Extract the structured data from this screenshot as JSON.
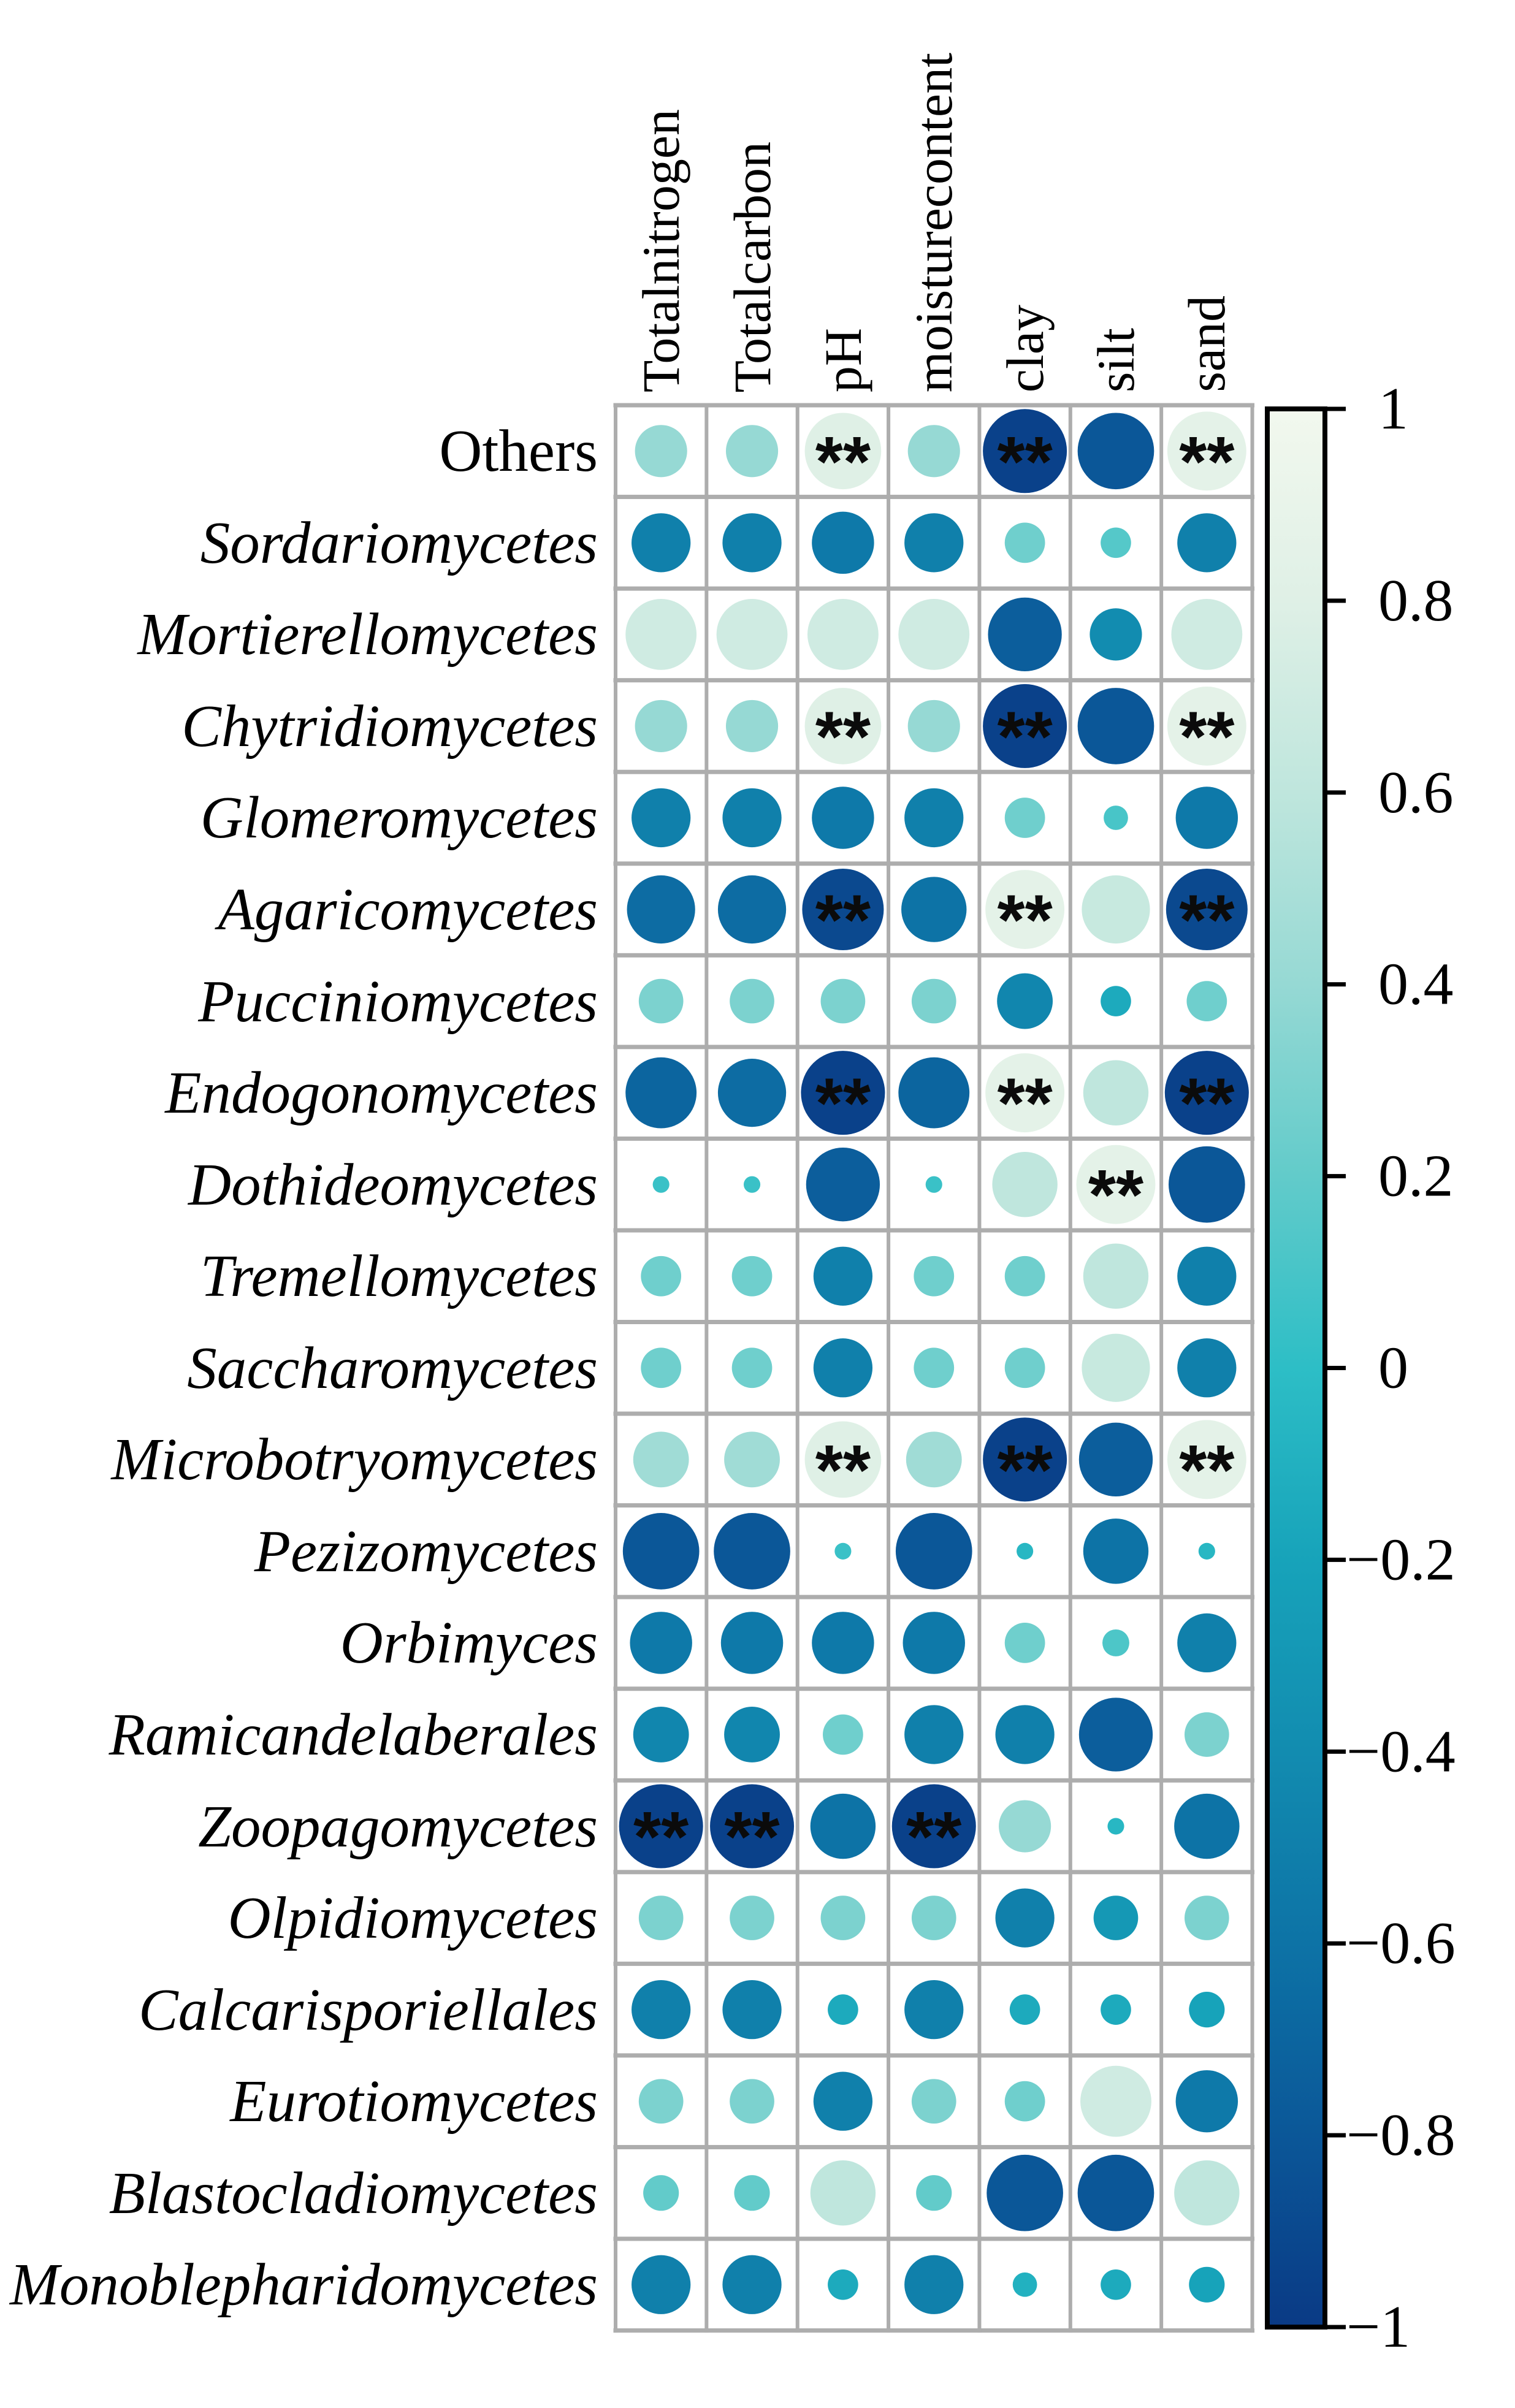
{
  "chart_data": {
    "type": "heatmap",
    "subtype": "correlation-bubble-matrix",
    "title": "",
    "xlabel": "",
    "ylabel": "",
    "legend_position": "right",
    "value_range": [
      -1,
      1
    ],
    "significance_marker": "**",
    "encoding": {
      "circle_size": "abs(correlation)",
      "circle_color": "correlation value mapped on colorbar"
    },
    "columns": [
      "Totalnitrogen",
      "Totalcarbon",
      "pH",
      "moisturecontent",
      "clay",
      "silt",
      "sand"
    ],
    "rows": [
      {
        "label": "Others",
        "italic": false,
        "values": [
          0.4,
          0.4,
          0.8,
          0.4,
          -0.95,
          -0.8,
          0.85
        ],
        "sig": [
          "",
          "",
          "**",
          "",
          "**",
          "",
          "**"
        ]
      },
      {
        "label": "Sordariomycetes",
        "italic": true,
        "values": [
          -0.5,
          -0.5,
          -0.55,
          -0.5,
          0.25,
          0.15,
          -0.5
        ],
        "sig": [
          "",
          "",
          "",
          "",
          "",
          "",
          ""
        ]
      },
      {
        "label": "Mortierellomycetes",
        "italic": true,
        "values": [
          0.7,
          0.7,
          0.7,
          0.7,
          -0.75,
          -0.4,
          0.7
        ],
        "sig": [
          "",
          "",
          "",
          "",
          "",
          "",
          ""
        ]
      },
      {
        "label": "Chytridiomycetes",
        "italic": true,
        "values": [
          0.4,
          0.4,
          0.8,
          0.4,
          -0.95,
          -0.8,
          0.85
        ],
        "sig": [
          "",
          "",
          "**",
          "",
          "**",
          "",
          "**"
        ]
      },
      {
        "label": "Glomeromycetes",
        "italic": true,
        "values": [
          -0.5,
          -0.5,
          -0.55,
          -0.5,
          0.25,
          0.1,
          -0.55
        ],
        "sig": [
          "",
          "",
          "",
          "",
          "",
          "",
          ""
        ]
      },
      {
        "label": "Agaricomycetes",
        "italic": true,
        "values": [
          -0.65,
          -0.65,
          -0.9,
          -0.6,
          0.85,
          0.65,
          -0.9
        ],
        "sig": [
          "",
          "",
          "**",
          "",
          "**",
          "",
          "**"
        ]
      },
      {
        "label": "Pucciniomycetes",
        "italic": true,
        "values": [
          0.3,
          0.3,
          0.3,
          0.3,
          -0.45,
          -0.15,
          0.25
        ],
        "sig": [
          "",
          "",
          "",
          "",
          "",
          "",
          ""
        ]
      },
      {
        "label": "Endogonomycetes",
        "italic": true,
        "values": [
          -0.7,
          -0.65,
          -0.95,
          -0.7,
          0.85,
          0.6,
          -0.95
        ],
        "sig": [
          "",
          "",
          "**",
          "",
          "**",
          "",
          "**"
        ]
      },
      {
        "label": "Dothideomycetes",
        "italic": true,
        "values": [
          0.05,
          0.05,
          -0.75,
          0.05,
          0.6,
          0.85,
          -0.8
        ],
        "sig": [
          "",
          "",
          "",
          "",
          "",
          "**",
          ""
        ]
      },
      {
        "label": "Tremellomycetes",
        "italic": true,
        "values": [
          0.25,
          0.25,
          -0.5,
          0.25,
          0.25,
          0.6,
          -0.5
        ],
        "sig": [
          "",
          "",
          "",
          "",
          "",
          "",
          ""
        ]
      },
      {
        "label": "Saccharomycetes",
        "italic": true,
        "values": [
          0.25,
          0.25,
          -0.5,
          0.25,
          0.25,
          0.65,
          -0.5
        ],
        "sig": [
          "",
          "",
          "",
          "",
          "",
          "",
          ""
        ]
      },
      {
        "label": "Microbotryomycetes",
        "italic": true,
        "values": [
          0.45,
          0.45,
          0.8,
          0.45,
          -0.95,
          -0.75,
          0.85
        ],
        "sig": [
          "",
          "",
          "**",
          "",
          "**",
          "",
          "**"
        ]
      },
      {
        "label": "Pezizomycetes",
        "italic": true,
        "values": [
          -0.8,
          -0.8,
          0.05,
          -0.8,
          -0.05,
          -0.6,
          -0.05
        ],
        "sig": [
          "",
          "",
          "",
          "",
          "",
          "",
          ""
        ]
      },
      {
        "label": "Orbimyces",
        "italic": true,
        "values": [
          -0.55,
          -0.55,
          -0.55,
          -0.55,
          0.25,
          0.12,
          -0.5
        ],
        "sig": [
          "",
          "",
          "",
          "",
          "",
          "",
          ""
        ]
      },
      {
        "label": "Ramicandelaberales",
        "italic": true,
        "values": [
          -0.45,
          -0.45,
          0.25,
          -0.5,
          -0.5,
          -0.75,
          0.3
        ],
        "sig": [
          "",
          "",
          "",
          "",
          "",
          "",
          ""
        ]
      },
      {
        "label": "Zoopagomycetes",
        "italic": true,
        "values": [
          -0.95,
          -0.95,
          -0.6,
          -0.95,
          0.4,
          -0.05,
          -0.6
        ],
        "sig": [
          "**",
          "**",
          "",
          "**",
          "",
          "",
          ""
        ]
      },
      {
        "label": "Olpidiomycetes",
        "italic": true,
        "values": [
          0.3,
          0.3,
          0.3,
          0.3,
          -0.5,
          -0.3,
          0.3
        ],
        "sig": [
          "",
          "",
          "",
          "",
          "",
          "",
          ""
        ]
      },
      {
        "label": "Calcarisporiellales",
        "italic": true,
        "values": [
          -0.5,
          -0.5,
          -0.15,
          -0.5,
          -0.15,
          -0.15,
          -0.2
        ],
        "sig": [
          "",
          "",
          "",
          "",
          "",
          "",
          ""
        ]
      },
      {
        "label": "Eurotiomycetes",
        "italic": true,
        "values": [
          0.3,
          0.3,
          -0.5,
          0.3,
          0.25,
          0.7,
          -0.55
        ],
        "sig": [
          "",
          "",
          "",
          "",
          "",
          "",
          ""
        ]
      },
      {
        "label": "Blastocladiomycetes",
        "italic": true,
        "values": [
          0.2,
          0.2,
          0.6,
          0.2,
          -0.8,
          -0.8,
          0.6
        ],
        "sig": [
          "",
          "",
          "",
          "",
          "",
          "",
          ""
        ]
      },
      {
        "label": "Monoblepharidomycetes",
        "italic": true,
        "values": [
          -0.5,
          -0.5,
          -0.15,
          -0.5,
          -0.1,
          -0.15,
          -0.2
        ],
        "sig": [
          "",
          "",
          "",
          "",
          "",
          "",
          ""
        ]
      }
    ],
    "colorbar": {
      "orientation": "vertical",
      "ticks": [
        1,
        0.8,
        0.6,
        0.4,
        0.2,
        0,
        -0.2,
        -0.4,
        -0.6,
        -0.8,
        -1
      ],
      "tick_labels": [
        "1",
        "0.8",
        "0.6",
        "0.4",
        "0.2",
        "0",
        "−0.2",
        "−0.4",
        "−0.6",
        "−0.8",
        "−1"
      ]
    },
    "palette_stops": [
      [
        -1.0,
        "#0a3a85"
      ],
      [
        -0.8,
        "#0b5798"
      ],
      [
        -0.6,
        "#0d73a6"
      ],
      [
        -0.4,
        "#128cb0"
      ],
      [
        -0.2,
        "#17a3ba"
      ],
      [
        0.0,
        "#2dbec6"
      ],
      [
        0.2,
        "#62cbca"
      ],
      [
        0.4,
        "#96d9d4"
      ],
      [
        0.6,
        "#bfe6dd"
      ],
      [
        0.8,
        "#dff0e6"
      ],
      [
        1.0,
        "#f2f8ee"
      ]
    ],
    "colors": {
      "background": "#ffffff",
      "grid_line": "#adadad",
      "text": "#000000",
      "significance_mark": "#0b0b0b",
      "colorbar_border": "#000000"
    }
  }
}
